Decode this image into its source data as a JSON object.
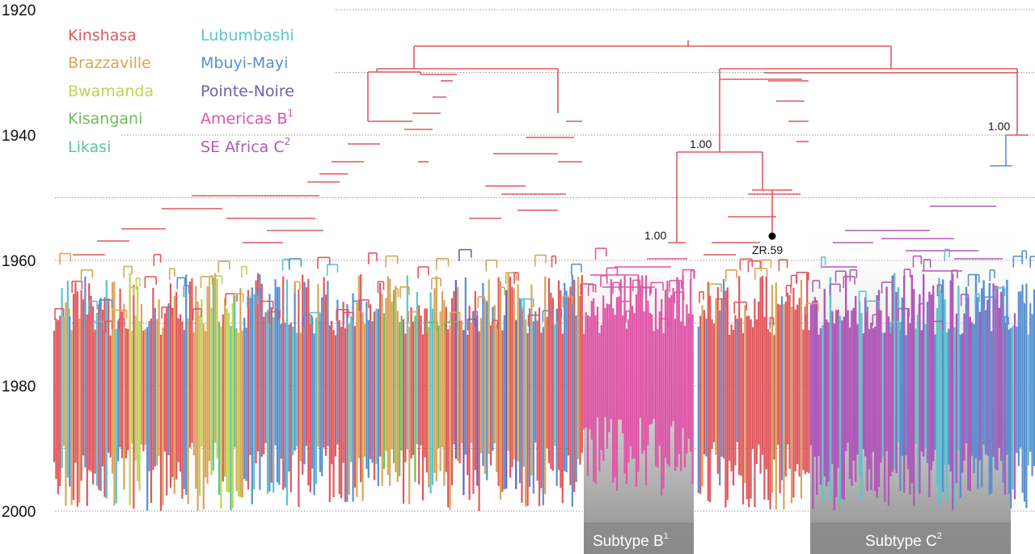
{
  "axis": {
    "years": [
      {
        "label": "1920",
        "value": 1920
      },
      {
        "label": "1940",
        "value": 1940
      },
      {
        "label": "1960",
        "value": 1960
      },
      {
        "label": "1980",
        "value": 1980
      },
      {
        "label": "2000",
        "value": 2000
      }
    ],
    "gridline_years": [
      1920,
      1930,
      1940,
      1950,
      1960,
      1970,
      1980,
      1990,
      2000
    ]
  },
  "legend": {
    "left_column": [
      {
        "name": "Kinshasa",
        "color": "#e0585e"
      },
      {
        "name": "Brazzaville",
        "color": "#d9a55a"
      },
      {
        "name": "Bwamanda",
        "color": "#bcd656"
      },
      {
        "name": "Kisangani",
        "color": "#6dbf5a"
      },
      {
        "name": "Likasi",
        "color": "#5bc49a"
      }
    ],
    "right_column": [
      {
        "name": "Lubumbashi",
        "color": "#5cc4cc"
      },
      {
        "name": "Mbuyi-Mayi",
        "color": "#5a8fd0"
      },
      {
        "name": "Pointe-Noire",
        "color": "#6a62b0"
      },
      {
        "name": "Americas B",
        "sup": "1",
        "color": "#e055a8"
      },
      {
        "name": "SE Africa C",
        "sup": "2",
        "color": "#b05ab8"
      }
    ]
  },
  "annotations": {
    "support_b": "1.00",
    "support_b_root": "1.00",
    "support_c": "1.00",
    "sample_label": "ZR.59"
  },
  "subtypes": {
    "b": {
      "label": "Subtype B",
      "sup": "1"
    },
    "c": {
      "label": "Subtype C",
      "sup": "2"
    }
  },
  "tree": {
    "root_year": 1922,
    "branch_color": "#e0585e"
  }
}
